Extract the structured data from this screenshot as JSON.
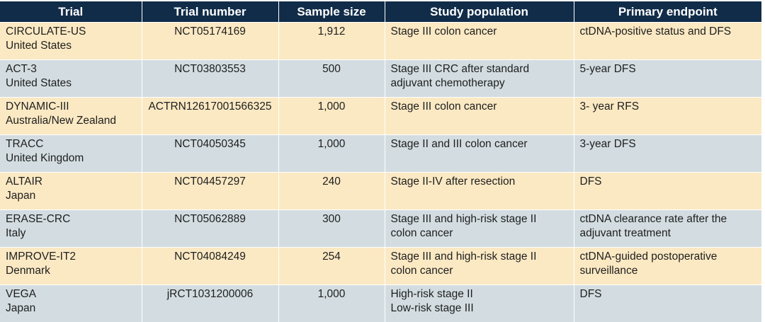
{
  "headers": [
    "Trial",
    "Trial number",
    "Sample size",
    "Study population",
    "Primary endpoint"
  ],
  "rows": [
    {
      "trial": "CIRCULATE-US",
      "country": "United States",
      "number": "NCT05174169",
      "size": "1,912",
      "pop": [
        "Stage III colon cancer",
        ""
      ],
      "endpoint": [
        "ctDNA-positive status and DFS",
        ""
      ]
    },
    {
      "trial": "ACT-3",
      "country": "United States",
      "number": "NCT03803553",
      "size": "500",
      "pop": [
        "Stage III CRC after standard",
        "adjuvant chemotherapy"
      ],
      "endpoint": [
        "5-year DFS",
        ""
      ]
    },
    {
      "trial": "DYNAMIC-III",
      "country": "Australia/New Zealand",
      "number": "ACTRN12617001566325",
      "size": "1,000",
      "pop": [
        "Stage III colon cancer",
        ""
      ],
      "endpoint": [
        "3- year RFS",
        ""
      ]
    },
    {
      "trial": "TRACC",
      "country": "United Kingdom",
      "number": "NCT04050345",
      "size": "1,000",
      "pop": [
        "Stage II and III colon cancer",
        ""
      ],
      "endpoint": [
        "3-year DFS",
        ""
      ]
    },
    {
      "trial": "ALTAIR",
      "country": "Japan",
      "number": "NCT04457297",
      "size": "240",
      "pop": [
        "Stage II-IV after resection",
        ""
      ],
      "endpoint": [
        "DFS",
        ""
      ]
    },
    {
      "trial": "ERASE-CRC",
      "country": "Italy",
      "number": "NCT05062889",
      "size": "300",
      "pop": [
        "Stage III and high-risk stage II",
        "colon cancer"
      ],
      "endpoint": [
        "ctDNA clearance rate after the",
        "adjuvant treatment"
      ]
    },
    {
      "trial": "IMPROVE-IT2",
      "country": "Denmark",
      "number": "NCT04084249",
      "size": "254",
      "pop": [
        "Stage III and high-risk stage II",
        "colon cancer"
      ],
      "endpoint": [
        "ctDNA-guided postoperative",
        "surveillance"
      ]
    },
    {
      "trial": "VEGA",
      "country": "Japan",
      "number": "jRCT1031200006",
      "size": "1,000",
      "pop": [
        "High-risk stage II",
        "Low-risk stage III"
      ],
      "endpoint": [
        "DFS",
        ""
      ]
    }
  ]
}
